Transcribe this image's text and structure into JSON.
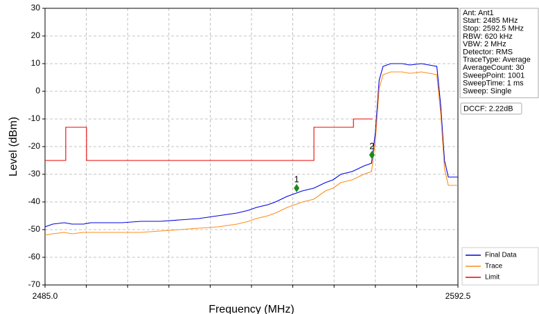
{
  "chart_data": {
    "type": "line",
    "xlabel": "Frequency (MHz)",
    "ylabel": "Level (dBm)",
    "xlim": [
      2485,
      2592.5
    ],
    "ylim": [
      -70,
      30
    ],
    "xticks": [
      {
        "value": 2485,
        "label": "2485.0"
      },
      {
        "value": 2495.75,
        "label": null
      },
      {
        "value": 2506.5,
        "label": null
      },
      {
        "value": 2517.25,
        "label": null
      },
      {
        "value": 2528,
        "label": null
      },
      {
        "value": 2538.75,
        "label": null
      },
      {
        "value": 2549.5,
        "label": null
      },
      {
        "value": 2560.25,
        "label": null
      },
      {
        "value": 2571,
        "label": null
      },
      {
        "value": 2581.75,
        "label": null
      },
      {
        "value": 2592.5,
        "label": "2592.5"
      }
    ],
    "yticks": [
      -70,
      -60,
      -50,
      -40,
      -30,
      -20,
      -10,
      0,
      10,
      20,
      30
    ],
    "grid": true,
    "legend": "lower right",
    "series": [
      {
        "name": "Final Data",
        "color": "#0000e0",
        "x": [
          2485,
          2487,
          2490,
          2492,
          2495,
          2497,
          2500,
          2505,
          2510,
          2515,
          2520,
          2525,
          2530,
          2535,
          2538,
          2540,
          2543,
          2545,
          2548,
          2550,
          2552,
          2555,
          2558,
          2560,
          2562,
          2565,
          2568,
          2570,
          2571,
          2572,
          2573,
          2575,
          2578,
          2580,
          2583,
          2585,
          2587,
          2588,
          2589,
          2590,
          2591,
          2592.5
        ],
        "values": [
          -49,
          -48,
          -47.5,
          -48,
          -48,
          -47.5,
          -47.5,
          -47.5,
          -47,
          -47,
          -46.5,
          -46,
          -45,
          -44,
          -43,
          -42,
          -41,
          -40,
          -38,
          -37,
          -36,
          -35,
          -33,
          -32,
          -30,
          -29,
          -27,
          -26,
          -15,
          4,
          9,
          10,
          10,
          9.5,
          10,
          9.5,
          9,
          -5,
          -25,
          -31,
          -31,
          -31
        ]
      },
      {
        "name": "Trace",
        "color": "#ff8c1a",
        "x": [
          2485,
          2487,
          2490,
          2492,
          2495,
          2497,
          2500,
          2505,
          2510,
          2515,
          2520,
          2525,
          2530,
          2535,
          2538,
          2540,
          2543,
          2545,
          2548,
          2550,
          2552,
          2555,
          2558,
          2560,
          2562,
          2565,
          2568,
          2570,
          2571,
          2572,
          2573,
          2575,
          2578,
          2580,
          2583,
          2585,
          2587,
          2588,
          2589,
          2590,
          2591,
          2592.5
        ],
        "values": [
          -52,
          -51.5,
          -51,
          -51.5,
          -51,
          -51,
          -51,
          -51,
          -51,
          -50.5,
          -50,
          -49.5,
          -49,
          -48,
          -47,
          -46,
          -45,
          -44,
          -42,
          -41,
          -40,
          -39,
          -36,
          -35,
          -33,
          -32,
          -30,
          -29,
          -18,
          1,
          6,
          7,
          7,
          6.5,
          7,
          6.5,
          6,
          -8,
          -28,
          -34,
          -34,
          -34
        ]
      },
      {
        "name": "Limit",
        "color": "#ee0000",
        "x": [
          2485,
          2490.4,
          2490.4,
          2495.8,
          2495.8,
          2555,
          2555,
          2565.3,
          2565.3,
          2570.3
        ],
        "values": [
          -25,
          -25,
          -13,
          -13,
          -25,
          -25,
          -13,
          -13,
          -10,
          -10
        ]
      }
    ],
    "markers": [
      {
        "label": "1",
        "x": 2550.5,
        "value": -35,
        "color": "#1a8a1a"
      },
      {
        "label": "2",
        "x": 2570.1,
        "value": -23,
        "color": "#1a8a1a"
      }
    ],
    "info_panel": [
      "Ant: Ant1",
      "Start: 2485 MHz",
      "Stop: 2592.5 MHz",
      "RBW: 620 kHz",
      "VBW: 2 MHz",
      "Detector: RMS",
      "TraceType: Average",
      "AverageCount: 30",
      "SweepPoint: 1001",
      "SweepTime: 1 ms",
      "Sweep: Single"
    ],
    "dccf": "DCCF: 2.22dB"
  }
}
